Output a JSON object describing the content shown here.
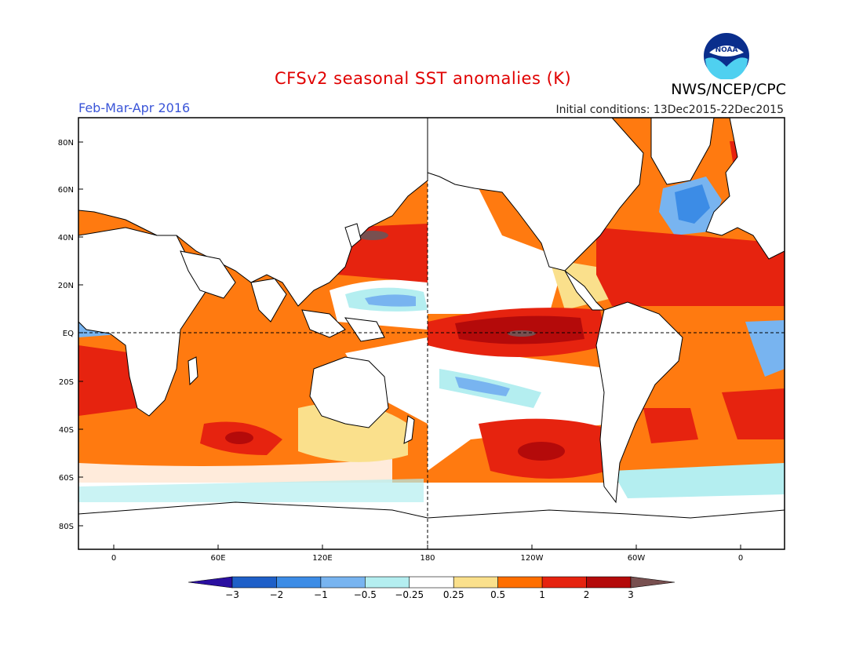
{
  "title": "CFSv2 seasonal SST anomalies (K)",
  "season": "Feb-Mar-Apr 2016",
  "initial_conditions": "Initial conditions: 13Dec2015-22Dec2015",
  "agency": "NWS/NCEP/CPC",
  "logo_text": "NOAA",
  "lat_ticks": [
    "80N",
    "60N",
    "40N",
    "20N",
    "EQ",
    "20S",
    "40S",
    "60S",
    "80S"
  ],
  "lon_ticks": [
    "0",
    "60E",
    "120E",
    "180",
    "120W",
    "60W",
    "0"
  ],
  "colorbar": {
    "labels": [
      "-3",
      "-2",
      "-1",
      "-0.5",
      "-0.25",
      "0.25",
      "0.5",
      "1",
      "2",
      "3"
    ],
    "colors": [
      "#2a0fa0",
      "#1e5fc8",
      "#3c8ce6",
      "#78b4f0",
      "#b4eef0",
      "#ffffff",
      "#fae08c",
      "#ff6e00",
      "#e6230f",
      "#b40a0a",
      "#785050"
    ]
  }
}
